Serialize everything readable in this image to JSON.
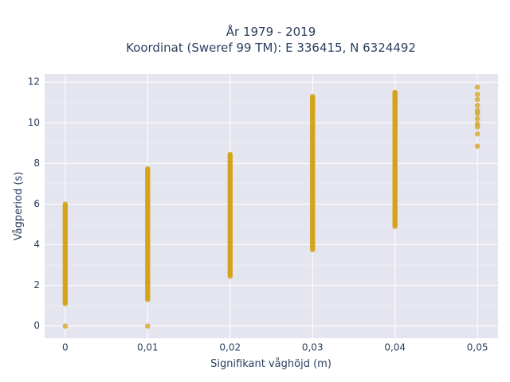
{
  "chart_data": {
    "type": "scatter",
    "title": "År 1979 - 2019",
    "subtitle": "Koordinat (Sweref 99 TM): E 336415, N 6324492",
    "xlabel": "Signifikant våghöjd (m)",
    "ylabel": "Vågperiod (s)",
    "xlim": [
      -0.0025,
      0.0525
    ],
    "ylim": [
      -0.6,
      12.4
    ],
    "x_ticks": [
      0,
      0.01,
      0.02,
      0.03,
      0.04,
      0.05
    ],
    "x_tick_labels": [
      "0",
      "0,01",
      "0,02",
      "0,03",
      "0,04",
      "0,05"
    ],
    "y_ticks": [
      0,
      2,
      4,
      6,
      8,
      10,
      12
    ],
    "y_tick_labels": [
      "0",
      "2",
      "4",
      "6",
      "8",
      "10",
      "12"
    ],
    "grid": true,
    "marker_color": "#d4a21a",
    "plot_background": "#e5e5f0",
    "series": [
      {
        "x": [
          0,
          0,
          0.01,
          0.01,
          0.02,
          0.02,
          0.03,
          0.03,
          0.04,
          0.04,
          0.05,
          0.05
        ],
        "dense_ranges": [
          {
            "x": 0,
            "y_min": 1.1,
            "y_max": 6.05
          },
          {
            "x": 0.01,
            "y_min": 1.3,
            "y_max": 7.75
          },
          {
            "x": 0.02,
            "y_min": 2.45,
            "y_max": 8.45
          },
          {
            "x": 0.03,
            "y_min": 3.75,
            "y_max": 11.3
          },
          {
            "x": 0.04,
            "y_min": 4.9,
            "y_max": 11.5
          }
        ],
        "points": [
          {
            "x": 0,
            "y": 0
          },
          {
            "x": 0.01,
            "y": 0
          },
          {
            "x": 0.05,
            "y": 11.75
          },
          {
            "x": 0.05,
            "y": 11.4
          },
          {
            "x": 0.05,
            "y": 11.15
          },
          {
            "x": 0.05,
            "y": 10.85
          },
          {
            "x": 0.05,
            "y": 10.6
          },
          {
            "x": 0.05,
            "y": 10.45
          },
          {
            "x": 0.05,
            "y": 10.2
          },
          {
            "x": 0.05,
            "y": 9.95
          },
          {
            "x": 0.05,
            "y": 9.8
          },
          {
            "x": 0.05,
            "y": 9.45
          },
          {
            "x": 0.05,
            "y": 8.85
          },
          {
            "x": 0.04,
            "y": 11.5
          },
          {
            "x": 0.04,
            "y": 11.3
          },
          {
            "x": 0.04,
            "y": 11.1
          },
          {
            "x": 0.03,
            "y": 11.3
          },
          {
            "x": 0.03,
            "y": 11.0
          },
          {
            "x": 0.03,
            "y": 10.6
          },
          {
            "x": 0.02,
            "y": 8.45
          },
          {
            "x": 0.01,
            "y": 7.7
          }
        ]
      }
    ]
  }
}
